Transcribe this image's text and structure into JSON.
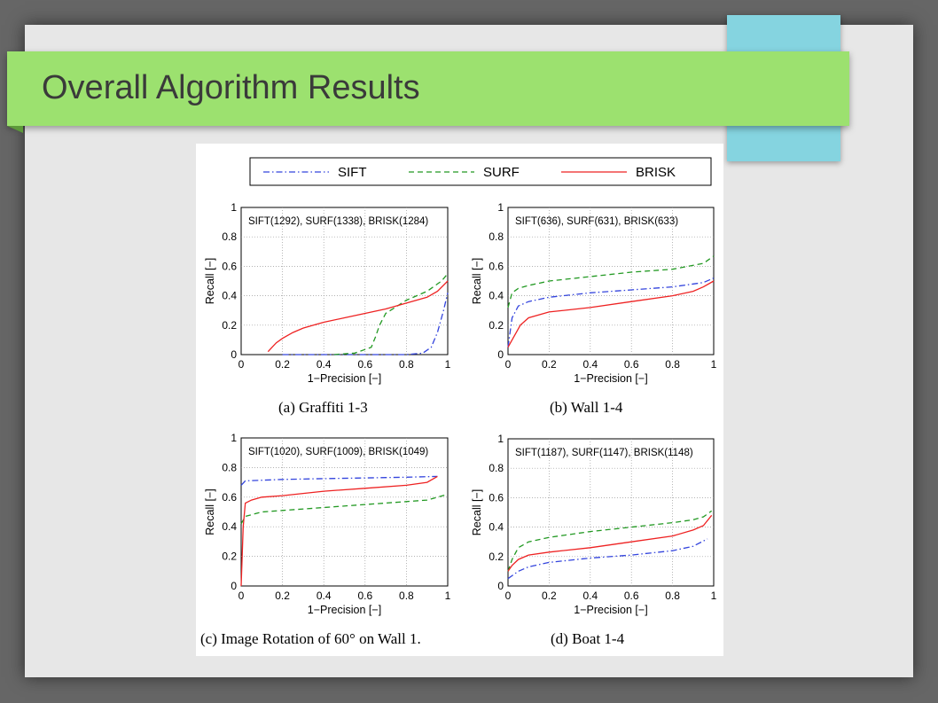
{
  "slide": {
    "title": "Overall Algorithm Results",
    "colors": {
      "banner": "#9ce16f",
      "accent": "#85d4e0",
      "background": "#e7e7e7"
    }
  },
  "chart_data": {
    "legend": [
      {
        "name": "SIFT",
        "color": "#3344dd",
        "dash": "dashdot"
      },
      {
        "name": "SURF",
        "color": "#229922",
        "dash": "dashed"
      },
      {
        "name": "BRISK",
        "color": "#ee2222",
        "dash": "solid"
      }
    ],
    "panels": [
      {
        "type": "line",
        "title": "SIFT(1292), SURF(1338), BRISK(1284)",
        "caption": "(a) Graffiti 1-3",
        "xlabel": "1−Precision [−]",
        "ylabel": "Recall [−]",
        "xlim": [
          0,
          1
        ],
        "ylim": [
          0,
          1
        ],
        "xticks": [
          "0",
          "0.2",
          "0.4",
          "0.6",
          "0.8",
          "1"
        ],
        "yticks": [
          "0",
          "0.2",
          "0.4",
          "0.6",
          "0.8",
          "1"
        ],
        "grid": true,
        "series": [
          {
            "name": "SIFT",
            "x": [
              0.2,
              0.4,
              0.6,
              0.8,
              0.88,
              0.92,
              0.95,
              0.98,
              1.0
            ],
            "y": [
              0,
              0,
              0,
              0,
              0.01,
              0.05,
              0.15,
              0.3,
              0.42
            ]
          },
          {
            "name": "SURF",
            "x": [
              0.45,
              0.55,
              0.63,
              0.65,
              0.67,
              0.7,
              0.8,
              0.9,
              0.97,
              1.0
            ],
            "y": [
              0,
              0.01,
              0.05,
              0.12,
              0.2,
              0.28,
              0.37,
              0.43,
              0.5,
              0.55
            ]
          },
          {
            "name": "BRISK",
            "x": [
              0.13,
              0.15,
              0.17,
              0.2,
              0.25,
              0.3,
              0.35,
              0.4,
              0.5,
              0.6,
              0.7,
              0.8,
              0.9,
              0.95,
              1.0
            ],
            "y": [
              0.02,
              0.05,
              0.08,
              0.11,
              0.15,
              0.18,
              0.2,
              0.22,
              0.25,
              0.28,
              0.31,
              0.35,
              0.39,
              0.43,
              0.5
            ]
          }
        ]
      },
      {
        "type": "line",
        "title": "SIFT(636), SURF(631), BRISK(633)",
        "caption": "(b) Wall 1-4",
        "xlabel": "1−Precision [−]",
        "ylabel": "Recall [−]",
        "xlim": [
          0,
          1
        ],
        "ylim": [
          0,
          1
        ],
        "xticks": [
          "0",
          "0.2",
          "0.4",
          "0.6",
          "0.8",
          "1"
        ],
        "yticks": [
          "0",
          "0.2",
          "0.4",
          "0.6",
          "0.8",
          "1"
        ],
        "grid": true,
        "series": [
          {
            "name": "SIFT",
            "x": [
              0,
              0.02,
              0.05,
              0.1,
              0.2,
              0.4,
              0.6,
              0.8,
              0.95,
              1.0
            ],
            "y": [
              0.05,
              0.25,
              0.33,
              0.36,
              0.39,
              0.42,
              0.44,
              0.46,
              0.49,
              0.52
            ]
          },
          {
            "name": "SURF",
            "x": [
              0,
              0.02,
              0.05,
              0.1,
              0.2,
              0.4,
              0.6,
              0.8,
              0.95,
              1.0
            ],
            "y": [
              0.32,
              0.42,
              0.45,
              0.47,
              0.5,
              0.53,
              0.56,
              0.58,
              0.62,
              0.67
            ]
          },
          {
            "name": "BRISK",
            "x": [
              0,
              0.02,
              0.04,
              0.06,
              0.1,
              0.2,
              0.4,
              0.6,
              0.8,
              0.9,
              0.95,
              1.0
            ],
            "y": [
              0.05,
              0.1,
              0.15,
              0.2,
              0.25,
              0.29,
              0.32,
              0.36,
              0.4,
              0.43,
              0.46,
              0.5
            ]
          }
        ]
      },
      {
        "type": "line",
        "title": "SIFT(1020), SURF(1009), BRISK(1049)",
        "caption": "(c) Image Rotation of 60° on Wall 1.",
        "xlabel": "1−Precision [−]",
        "ylabel": "Recall [−]",
        "xlim": [
          0,
          1
        ],
        "ylim": [
          0,
          1
        ],
        "xticks": [
          "0",
          "0.2",
          "0.4",
          "0.6",
          "0.8",
          "1"
        ],
        "yticks": [
          "0",
          "0.2",
          "0.4",
          "0.6",
          "0.8",
          "1"
        ],
        "grid": true,
        "series": [
          {
            "name": "SIFT",
            "x": [
              0,
              0.02,
              0.2,
              0.4,
              0.6,
              0.8,
              0.95
            ],
            "y": [
              0.68,
              0.71,
              0.72,
              0.725,
              0.73,
              0.735,
              0.74
            ]
          },
          {
            "name": "SURF",
            "x": [
              0,
              0.02,
              0.1,
              0.2,
              0.4,
              0.6,
              0.8,
              0.9,
              0.95,
              1.0
            ],
            "y": [
              0.42,
              0.47,
              0.5,
              0.51,
              0.53,
              0.55,
              0.57,
              0.58,
              0.6,
              0.62
            ]
          },
          {
            "name": "BRISK",
            "x": [
              0,
              0.01,
              0.02,
              0.05,
              0.1,
              0.2,
              0.4,
              0.6,
              0.8,
              0.9,
              0.95
            ],
            "y": [
              0,
              0.4,
              0.56,
              0.58,
              0.6,
              0.61,
              0.64,
              0.66,
              0.68,
              0.7,
              0.74
            ]
          }
        ]
      },
      {
        "type": "line",
        "title": "SIFT(1187), SURF(1147), BRISK(1148)",
        "caption": "(d) Boat 1-4",
        "xlabel": "1−Precision [−]",
        "ylabel": "Recall [−]",
        "xlim": [
          0,
          1
        ],
        "ylim": [
          0,
          1
        ],
        "xticks": [
          "0",
          "0.2",
          "0.4",
          "0.6",
          "0.8",
          "1"
        ],
        "yticks": [
          "0",
          "0.2",
          "0.4",
          "0.6",
          "0.8",
          "1"
        ],
        "grid": true,
        "series": [
          {
            "name": "SIFT",
            "x": [
              0,
              0.05,
              0.1,
              0.2,
              0.4,
              0.6,
              0.8,
              0.9,
              0.97
            ],
            "y": [
              0.05,
              0.1,
              0.13,
              0.16,
              0.19,
              0.21,
              0.24,
              0.27,
              0.32
            ]
          },
          {
            "name": "SURF",
            "x": [
              0,
              0.02,
              0.05,
              0.1,
              0.2,
              0.4,
              0.6,
              0.8,
              0.9,
              0.95,
              0.99
            ],
            "y": [
              0.1,
              0.18,
              0.26,
              0.3,
              0.33,
              0.37,
              0.4,
              0.43,
              0.45,
              0.47,
              0.51
            ]
          },
          {
            "name": "BRISK",
            "x": [
              0,
              0.02,
              0.05,
              0.1,
              0.2,
              0.4,
              0.6,
              0.8,
              0.9,
              0.95,
              0.99
            ],
            "y": [
              0.1,
              0.14,
              0.18,
              0.21,
              0.23,
              0.26,
              0.3,
              0.34,
              0.38,
              0.41,
              0.48
            ]
          }
        ]
      }
    ]
  }
}
